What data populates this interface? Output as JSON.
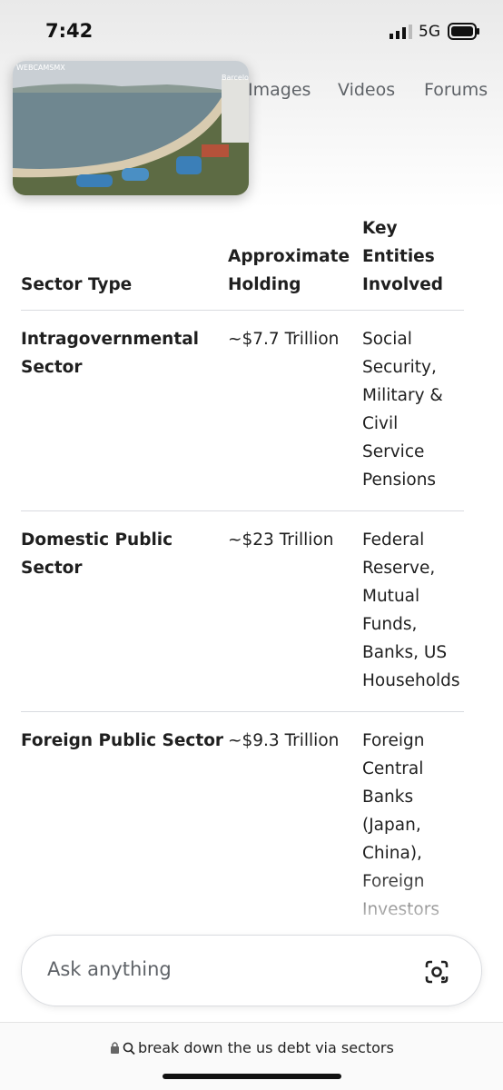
{
  "status_bar": {
    "time": "7:42",
    "network": "5G"
  },
  "video": {
    "watermark": "WEBCAMSMX",
    "location": "Barcelo"
  },
  "tabs": [
    "Images",
    "Videos",
    "Forums"
  ],
  "table": {
    "headers": [
      "Sector Type",
      "Approximate Holding",
      "Key Entities Involved"
    ],
    "rows": [
      [
        "Intragovernmental Sector",
        "~$7.7 Trillion",
        "Social Security, Military & Civil Service Pensions"
      ],
      [
        "Domestic Public Sector",
        "~$23 Trillion",
        "Federal Reserve, Mutual Funds, Banks, US Households"
      ],
      [
        "Foreign Public Sector",
        "~$9.3 Trillion",
        "Foreign Central Banks (Japan, China), Foreign Investors"
      ]
    ]
  },
  "search": {
    "placeholder": "Ask anything"
  },
  "url_bar": {
    "text": "break down the us debt via sectors"
  }
}
